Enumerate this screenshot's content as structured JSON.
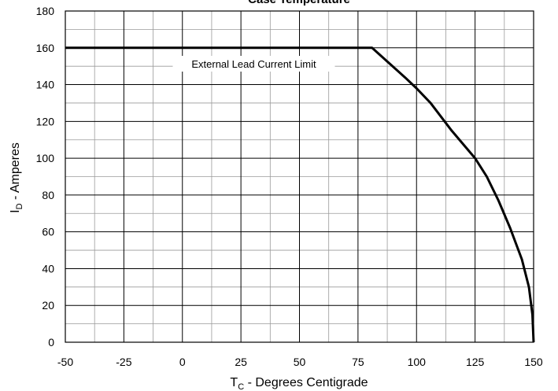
{
  "chart_data": {
    "type": "line",
    "title": "Case Temperature",
    "xlabel": "T",
    "xlabel_sub": "C",
    "xlabel_rest": " - Degrees Centigrade",
    "ylabel": "I",
    "ylabel_sub": "D",
    "ylabel_rest": " - Amperes",
    "xlim": [
      -50,
      150
    ],
    "ylim": [
      0,
      180
    ],
    "xticks": [
      -50,
      -25,
      0,
      25,
      50,
      75,
      100,
      125,
      150
    ],
    "yticks": [
      0,
      20,
      40,
      60,
      80,
      100,
      120,
      140,
      160,
      180
    ],
    "grid": true,
    "series": [
      {
        "x": [
          -50,
          81,
          88,
          95,
          100,
          106,
          115,
          125,
          130,
          135,
          140,
          145,
          148,
          149.5,
          150
        ],
        "y": [
          160,
          160,
          152,
          144,
          138,
          130,
          115,
          100,
          90,
          77,
          62,
          45,
          30,
          15,
          0
        ],
        "color": "#000000"
      }
    ],
    "annotations": [
      {
        "text": "External Lead Current Limit"
      }
    ]
  }
}
